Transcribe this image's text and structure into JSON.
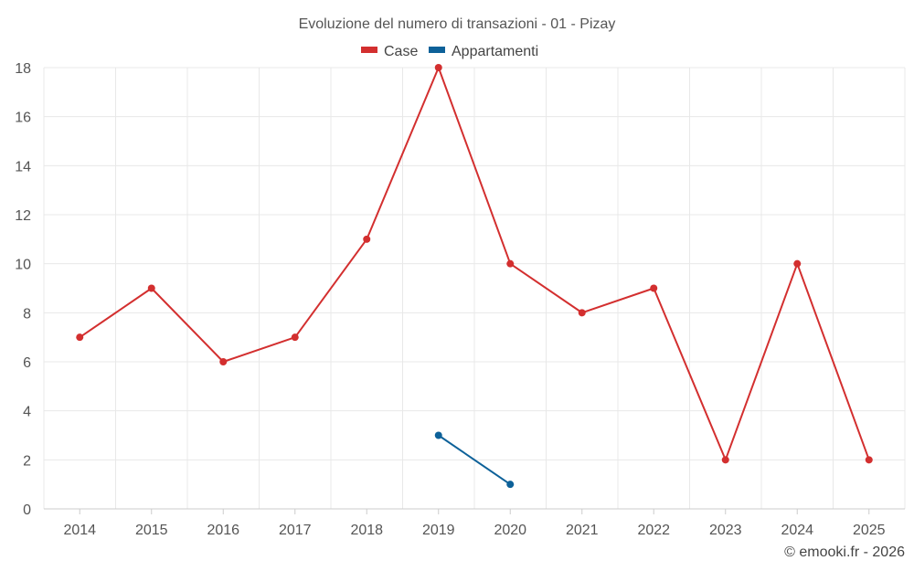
{
  "chart_data": {
    "type": "line",
    "title": "Evoluzione del numero di transazioni - 01 - Pizay",
    "categories": [
      "2014",
      "2015",
      "2016",
      "2017",
      "2018",
      "2019",
      "2020",
      "2021",
      "2022",
      "2023",
      "2024",
      "2025"
    ],
    "series": [
      {
        "name": "Case",
        "color": "#d32f2f",
        "values": [
          7,
          9,
          6,
          7,
          11,
          18,
          10,
          8,
          9,
          2,
          10,
          2
        ]
      },
      {
        "name": "Appartamenti",
        "color": "#0d6199",
        "values": [
          null,
          null,
          null,
          null,
          null,
          3,
          1,
          null,
          null,
          null,
          null,
          null
        ]
      }
    ],
    "ylim": [
      0,
      18
    ],
    "yticks": [
      0,
      2,
      4,
      6,
      8,
      10,
      12,
      14,
      16,
      18
    ],
    "grid": true,
    "legend_position": "top-center",
    "credit": "© emooki.fr - 2026"
  }
}
